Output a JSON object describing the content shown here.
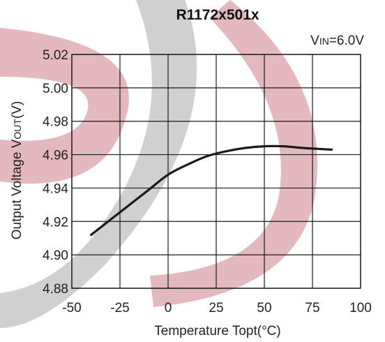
{
  "chart_data": {
    "type": "line",
    "title": "R1172x501x",
    "condition": {
      "main": "V",
      "sub": "IN",
      "rest": "=6.0V"
    },
    "xlabel": "Temperature Topt(°C)",
    "ylabel": {
      "main": "Output Voltage V",
      "sub": "OUT",
      "rest": "(V)"
    },
    "xlim": [
      -50,
      100
    ],
    "ylim": [
      4.88,
      5.02
    ],
    "x_ticks": [
      "-50",
      "-25",
      "0",
      "25",
      "50",
      "75",
      "100"
    ],
    "y_ticks": [
      "5.02",
      "5.00",
      "4.98",
      "4.96",
      "4.94",
      "4.92",
      "4.90",
      "4.88"
    ],
    "grid": true,
    "series": [
      {
        "x": [
          -40,
          -30,
          -20,
          -10,
          0,
          10,
          20,
          30,
          40,
          50,
          60,
          70,
          85
        ],
        "y": [
          4.912,
          4.921,
          4.93,
          4.939,
          4.948,
          4.954,
          4.959,
          4.962,
          4.964,
          4.965,
          4.965,
          4.964,
          4.963
        ],
        "color": "#1a1a1a"
      }
    ],
    "watermark_colors": {
      "red": "#d9a0aa",
      "gray": "#c8c8c8"
    }
  }
}
